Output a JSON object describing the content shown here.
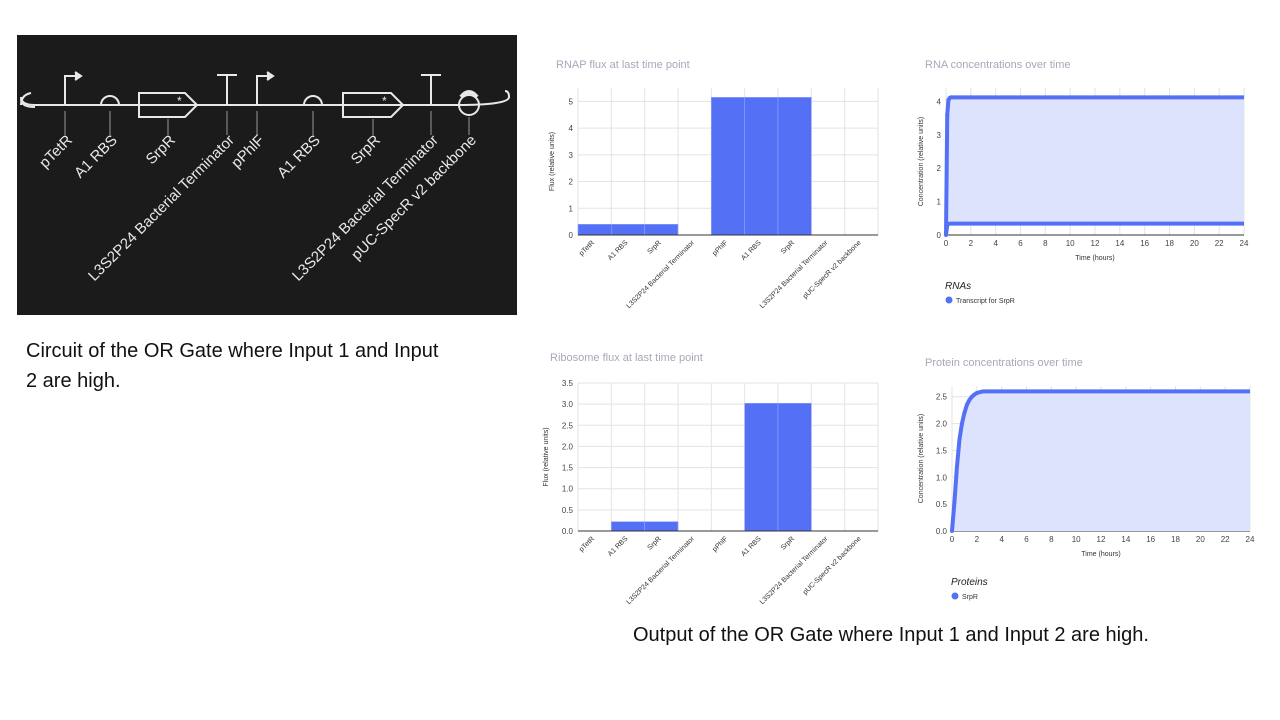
{
  "circuit": {
    "parts": [
      "pTetR",
      "A1 RBS",
      "SrpR",
      "L3S2P24 Bacterial Terminator",
      "pPhlF",
      "A1 RBS",
      "SrpR",
      "L3S2P24 Bacterial Terminator",
      "pUC-SpecR v2 backbone"
    ]
  },
  "captions": {
    "left": "Circuit of the OR Gate where Input 1 and Input 2 are high.",
    "right": "Output of the OR Gate where Input 1 and Input 2 are high."
  },
  "colors": {
    "series": "#5470f5",
    "fill": "#dde3fd",
    "grid": "#e3e3e3",
    "title": "#a5a9b8",
    "circuit_bg": "#1b1b1b"
  },
  "chart_data": [
    {
      "type": "bar",
      "title": "RNAP flux at last time point",
      "ylabel": "Flux (relative units)",
      "categories": [
        "pTetR",
        "A1 RBS",
        "SrpR",
        "L3S2P24 Bacterial Terminator",
        "pPhlF",
        "A1 RBS",
        "SrpR",
        "L3S2P24 Bacterial Terminator",
        "pUC-SpecR v2 backbone"
      ],
      "values": [
        0.4,
        0.4,
        0.4,
        0,
        5.15,
        5.15,
        5.15,
        0,
        0
      ],
      "ylim": [
        0,
        5.5
      ],
      "yticks": [
        0,
        1,
        2,
        3,
        4,
        5
      ],
      "grid": true
    },
    {
      "type": "line",
      "title": "RNA concentrations over time",
      "xlabel": "Time (hours)",
      "ylabel": "Concentration (relative units)",
      "xlim": [
        0,
        24
      ],
      "ylim": [
        0,
        4.4
      ],
      "xticks": [
        0,
        2,
        4,
        6,
        8,
        10,
        12,
        14,
        16,
        18,
        20,
        22,
        24
      ],
      "yticks": [
        0,
        1,
        2,
        3,
        4
      ],
      "legend_title": "RNAs",
      "series": [
        {
          "name": "Transcript for SrpR",
          "x": [
            0,
            0.1,
            0.2,
            0.3,
            0.4,
            0.5,
            1,
            2,
            4,
            6,
            8,
            10,
            12,
            14,
            16,
            18,
            20,
            22,
            24
          ],
          "y": [
            0,
            3.6,
            4.05,
            4.1,
            4.12,
            4.12,
            4.12,
            4.12,
            4.12,
            4.12,
            4.12,
            4.12,
            4.12,
            4.12,
            4.12,
            4.12,
            4.12,
            4.12,
            4.12
          ],
          "y_lower": [
            0,
            0.3,
            0.33,
            0.34,
            0.34,
            0.34,
            0.34,
            0.34,
            0.34,
            0.34,
            0.34,
            0.34,
            0.34,
            0.34,
            0.34,
            0.34,
            0.34,
            0.34,
            0.34
          ]
        }
      ],
      "grid": true
    },
    {
      "type": "bar",
      "title": "Ribosome flux at last time point",
      "ylabel": "Flux (relative units)",
      "categories": [
        "pTetR",
        "A1 RBS",
        "SrpR",
        "L3S2P24 Bacterial Terminator",
        "pPhlF",
        "A1 RBS",
        "SrpR",
        "L3S2P24 Bacterial Terminator",
        "pUC-SpecR v2 backbone"
      ],
      "values": [
        0,
        0.22,
        0.22,
        0,
        0,
        3.02,
        3.02,
        0,
        0
      ],
      "ylim": [
        0,
        3.5
      ],
      "yticks": [
        "0.0",
        "0.5",
        "1.0",
        "1.5",
        "2.0",
        "2.5",
        "3.0",
        "3.5"
      ],
      "grid": true
    },
    {
      "type": "line",
      "title": "Protein concentrations over time",
      "xlabel": "Time (hours)",
      "ylabel": "Concentration (relative units)",
      "xlim": [
        0,
        24
      ],
      "ylim": [
        0,
        2.7
      ],
      "xticks": [
        0,
        2,
        4,
        6,
        8,
        10,
        12,
        14,
        16,
        18,
        20,
        22,
        24
      ],
      "yticks": [
        "0.0",
        "0.5",
        "1.0",
        "1.5",
        "2.0",
        "2.5"
      ],
      "legend_title": "Proteins",
      "series": [
        {
          "name": "SrpR",
          "x": [
            0,
            0.2,
            0.4,
            0.6,
            0.8,
            1.0,
            1.2,
            1.4,
            1.6,
            1.8,
            2.0,
            2.5,
            3,
            4,
            6,
            8,
            10,
            12,
            14,
            16,
            18,
            20,
            22,
            24
          ],
          "y": [
            0,
            0.55,
            1.2,
            1.7,
            2.0,
            2.2,
            2.35,
            2.44,
            2.5,
            2.54,
            2.57,
            2.6,
            2.6,
            2.6,
            2.6,
            2.6,
            2.6,
            2.6,
            2.6,
            2.6,
            2.6,
            2.6,
            2.6,
            2.6
          ]
        }
      ],
      "grid": true
    }
  ]
}
